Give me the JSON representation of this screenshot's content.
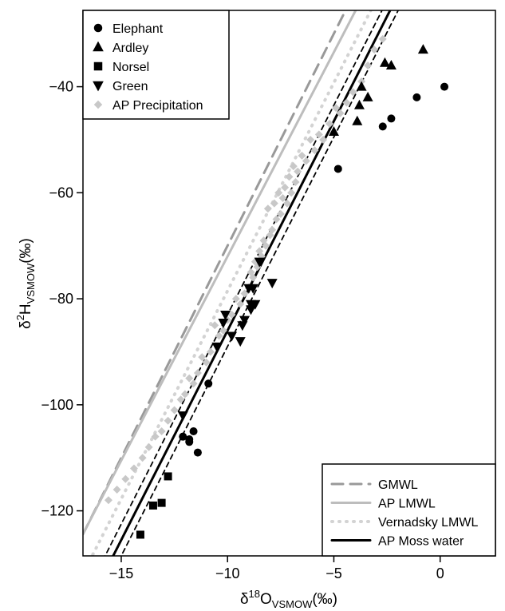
{
  "chart_data": {
    "type": "scatter",
    "xlabel": {
      "prefix": "δ",
      "sup": "18",
      "main": "O",
      "sub": "VSMOW",
      "suffix": "(‰)"
    },
    "ylabel": {
      "prefix": "δ",
      "sup": "2",
      "main": "H",
      "sub": "VSMOW",
      "suffix": "(‰)"
    },
    "xlim": [
      -16.8,
      2.6
    ],
    "ylim": [
      -128.5,
      -25.6
    ],
    "xticks": [
      -15,
      -10,
      -5,
      0
    ],
    "xtick_labels": [
      "−15",
      "−10",
      "−5",
      "0"
    ],
    "yticks": [
      -120,
      -100,
      -80,
      -60,
      -40
    ],
    "ytick_labels": [
      "−120",
      "−100",
      "−80",
      "−60",
      "−40"
    ],
    "grid": false,
    "series": [
      {
        "name": "Elephant",
        "marker": "circle",
        "color": "#000000",
        "x": [
          0.2,
          -1.1,
          -2.3,
          -2.7,
          -4.8,
          -10.9,
          -11.4,
          -11.6,
          -11.8,
          -11.8,
          -12.1
        ],
        "y": [
          -40,
          -42,
          -46,
          -47.5,
          -55.5,
          -96,
          -109,
          -105,
          -106.5,
          -107,
          -106
        ]
      },
      {
        "name": "Ardley",
        "marker": "triangle-up",
        "color": "#000000",
        "x": [
          -0.8,
          -2.3,
          -2.6,
          -3.4,
          -3.7,
          -3.8,
          -3.9,
          -5.0
        ],
        "y": [
          -33,
          -36,
          -35.5,
          -42,
          -40,
          -43.5,
          -46.5,
          -48.5
        ]
      },
      {
        "name": "Norsel",
        "marker": "square",
        "color": "#000000",
        "x": [
          -12.8,
          -13.1,
          -13.5,
          -14.1
        ],
        "y": [
          -113.5,
          -118.5,
          -119,
          -124.5
        ]
      },
      {
        "name": "Green",
        "marker": "triangle-down",
        "color": "#000000",
        "x": [
          -7.9,
          -8.5,
          -8.7,
          -8.8,
          -8.9,
          -8.9,
          -9.0,
          -9.2,
          -9.3,
          -9.4,
          -9.8,
          -10.1,
          -10.2,
          -10.5,
          -12.1
        ],
        "y": [
          -77,
          -73,
          -81,
          -78,
          -81,
          -82,
          -78,
          -84,
          -85,
          -88,
          -87,
          -83,
          -84.5,
          -89,
          -102
        ]
      },
      {
        "name": "AP Precipitation",
        "marker": "diamond",
        "color": "#c8c8c8",
        "x": [
          -2.7,
          -3.1,
          -3.4,
          -3.7,
          -4.1,
          -4.4,
          -4.7,
          -4.9,
          -5.2,
          -5.5,
          -5.7,
          -5.9,
          -6.1,
          -6.3,
          -6.5,
          -6.7,
          -6.8,
          -6.9,
          -7.0,
          -7.1,
          -7.2,
          -7.3,
          -7.4,
          -7.5,
          -7.6,
          -7.7,
          -7.8,
          -7.9,
          -8.0,
          -8.1,
          -8.2,
          -8.3,
          -8.4,
          -8.5,
          -8.6,
          -8.7,
          -8.8,
          -8.9,
          -9.0,
          -9.2,
          -9.4,
          -9.6,
          -9.8,
          -10.0,
          -10.2,
          -10.4,
          -10.6,
          -10.8,
          -11.0,
          -11.2,
          -11.4,
          -11.6,
          -11.8,
          -12.0,
          -12.2,
          -12.5,
          -12.8,
          -13.1,
          -13.4,
          -13.7,
          -14.0,
          -14.4,
          -14.8,
          -15.2,
          -15.6
        ],
        "y": [
          -31,
          -33,
          -36,
          -39,
          -41,
          -43,
          -45,
          -44,
          -47,
          -50,
          -49,
          -52,
          -50,
          -54,
          -53,
          -56,
          -58,
          -55,
          -60,
          -57,
          -62,
          -59,
          -61,
          -64,
          -60,
          -65,
          -62,
          -67,
          -68,
          -63,
          -70,
          -69,
          -72,
          -71,
          -74,
          -73,
          -76,
          -75,
          -78,
          -79,
          -81,
          -80,
          -83,
          -84,
          -86,
          -87,
          -85,
          -90,
          -92,
          -91,
          -94,
          -96,
          -95,
          -98,
          -99,
          -101,
          -103,
          -105,
          -106,
          -108,
          -110,
          -112,
          -114,
          -116,
          -118
        ]
      }
    ],
    "lines": [
      {
        "name": "GMWL",
        "slope": 8,
        "intercept": 10,
        "color": "#999999",
        "dash": "14 9",
        "width": 3
      },
      {
        "name": "AP LMWL",
        "slope": 7.7,
        "intercept": 5,
        "color": "#bdbdbd",
        "dash": "",
        "width": 3
      },
      {
        "name": "Vernadsky LMWL",
        "slope": 7.85,
        "intercept": 0,
        "color": "#d3d3d3",
        "dash": "1 8",
        "width": 4
      },
      {
        "name": "AP Moss water",
        "slope": 7.9,
        "intercept": -7,
        "color": "#000000",
        "dash": "",
        "width": 3
      }
    ],
    "ci_lines": [
      {
        "slope": 7.9,
        "intercept": -4,
        "color": "#000000",
        "dash": "6 5",
        "width": 1.8
      },
      {
        "slope": 7.9,
        "intercept": -10,
        "color": "#000000",
        "dash": "6 5",
        "width": 1.8
      }
    ],
    "legend_points": {
      "position": "top-left",
      "items": [
        "Elephant",
        "Ardley",
        "Norsel",
        "Green",
        "AP Precipitation"
      ]
    },
    "legend_lines": {
      "position": "bottom-right",
      "items": [
        "GMWL",
        "AP LMWL",
        "Vernadsky LMWL",
        "AP Moss water"
      ]
    }
  }
}
